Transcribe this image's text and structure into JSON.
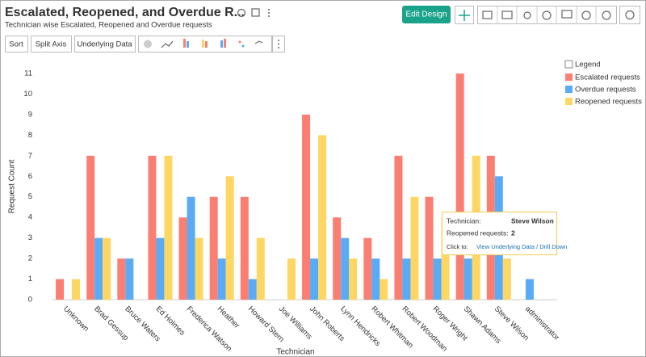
{
  "header": {
    "title": "Escalated, Reopened, and Overdue R...",
    "subtitle": "Technician wise Escalated, Reopened and Overdue requests",
    "edit_button": "Edit Design"
  },
  "toolbar": {
    "buttons": [
      "Sort",
      "Split Axis",
      "Underlying Data"
    ]
  },
  "tooltip": {
    "category_label": "Technician:",
    "value_label": "Reopened requests:",
    "action_label": "Click to:",
    "action": "View Underlying Data / Drill Down"
  },
  "chart_data": {
    "type": "bar",
    "x_label": "Technician",
    "y_label": "Request Count",
    "legend_title": "Legend",
    "legend_position": "right",
    "grid": false,
    "categories": [
      "Unknown",
      "Brad Gessup",
      "Bruce Waters",
      "Ed Holmes",
      "Frederica Watson",
      "Heather",
      "Howard Stern",
      "Joe Williams",
      "John Roberts",
      "Lynn Hendricks",
      "Robert Whitman",
      "Robert Woodman",
      "Roger Wright",
      "Shawn Adams",
      "Steve Wilson",
      "administrator"
    ],
    "series": [
      {
        "name": "Escalated requests",
        "color": "#fa7f72",
        "values": [
          1,
          7,
          2,
          7,
          4,
          5,
          5,
          null,
          9,
          4,
          3,
          7,
          5,
          11,
          7,
          null
        ]
      },
      {
        "name": "Overdue requests",
        "color": "#5aabf5",
        "values": [
          null,
          3,
          2,
          3,
          5,
          2,
          1,
          null,
          2,
          3,
          2,
          2,
          2,
          2,
          6,
          1
        ]
      },
      {
        "name": "Reopened requests",
        "color": "#fdd663",
        "values": [
          1,
          3,
          null,
          7,
          3,
          6,
          3,
          2,
          8,
          2,
          1,
          5,
          4,
          7,
          2,
          null
        ]
      }
    ],
    "ylim": [
      0,
      11
    ],
    "yticks": [
      0,
      1,
      2,
      3,
      4,
      5,
      6,
      7,
      8,
      9,
      10,
      11
    ]
  }
}
